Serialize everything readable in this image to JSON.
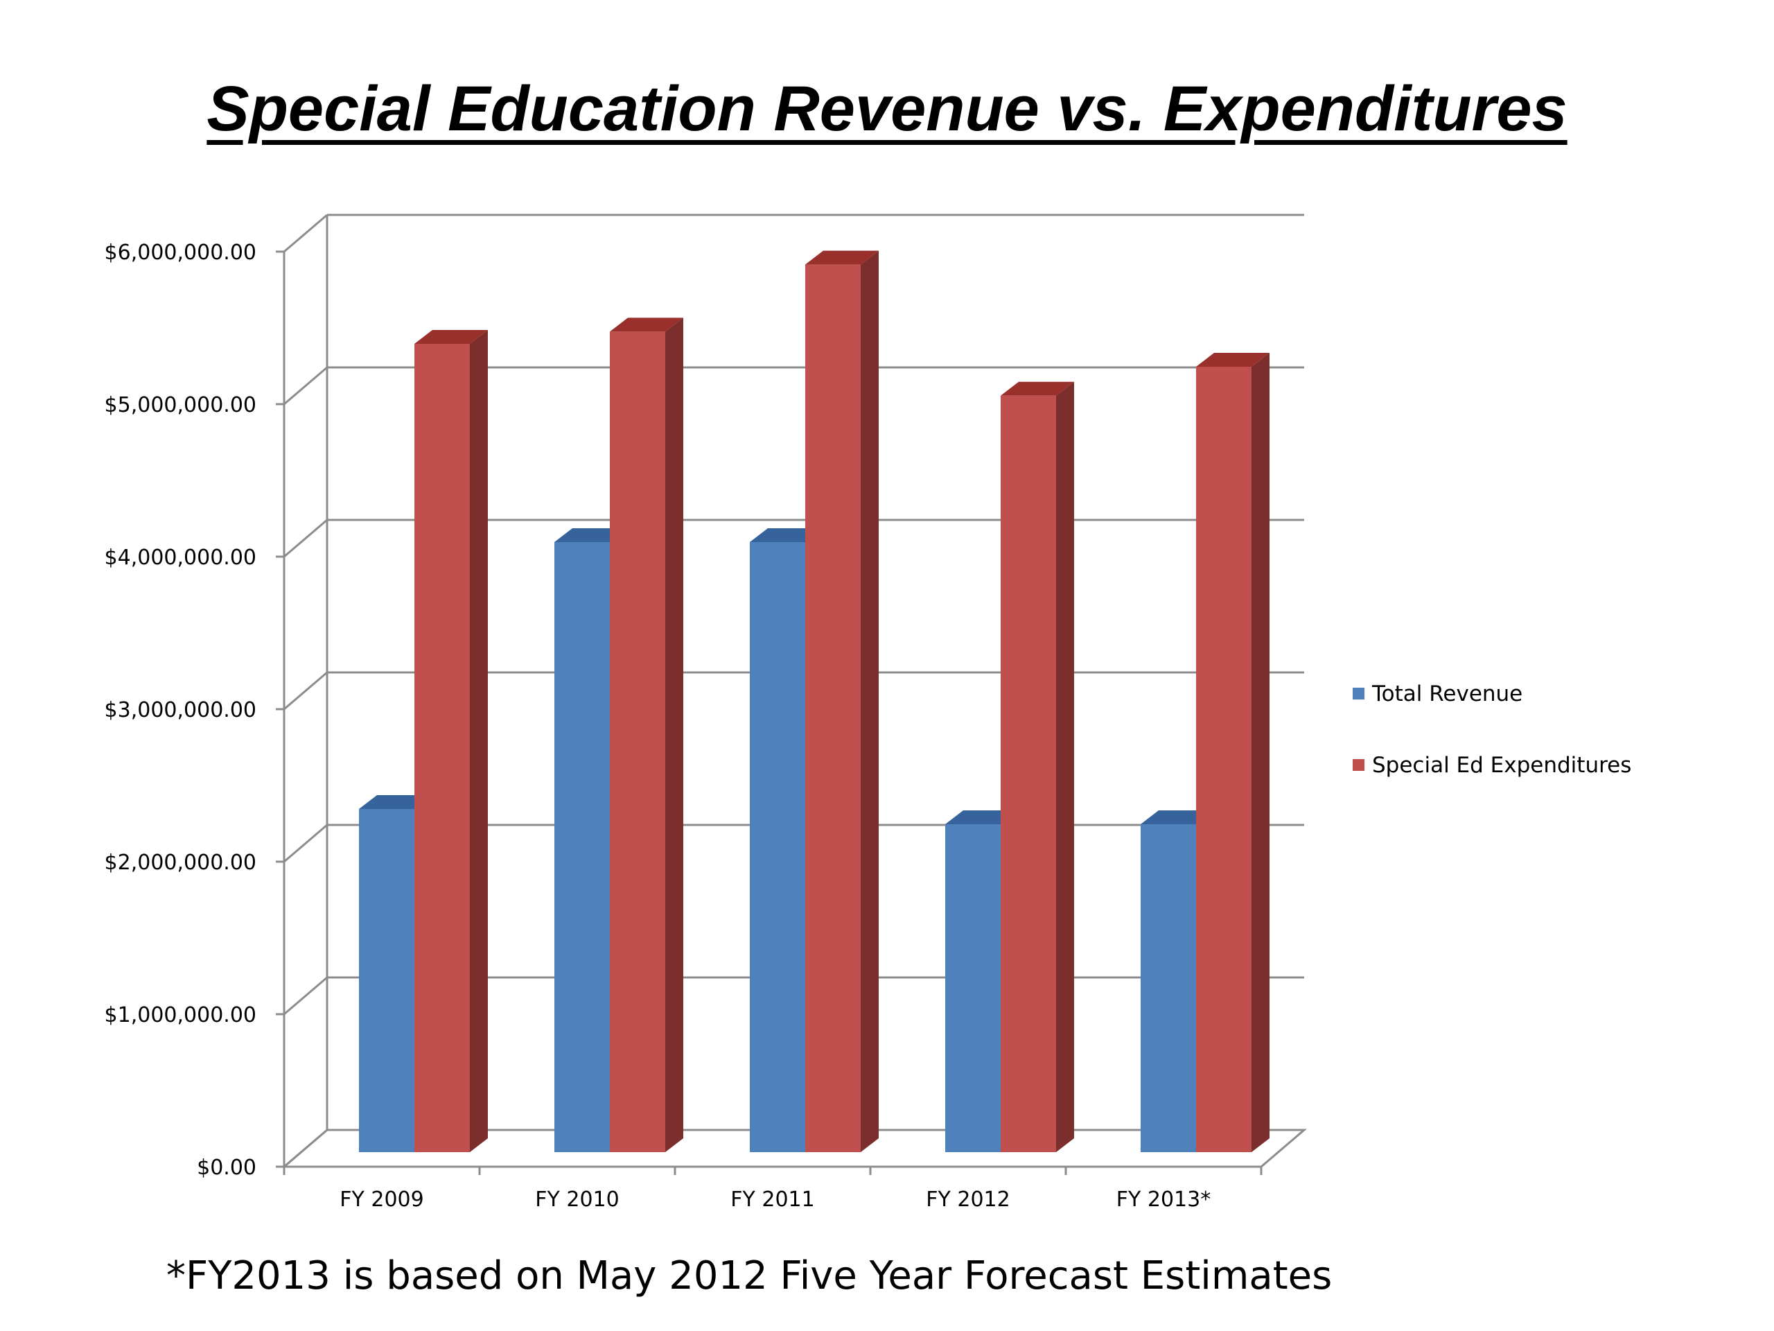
{
  "chart_data": {
    "type": "bar",
    "style": "3d-clustered-column",
    "title": "Special Education Revenue vs. Expenditures",
    "categories": [
      "FY 2009",
      "FY 2010",
      "FY 2011",
      "FY 2012",
      "FY 2013*"
    ],
    "series": [
      {
        "name": "Total Revenue",
        "color": "#4f81bd",
        "side_color": "#2c4d75",
        "top_color": "#36639b",
        "values": [
          2250000,
          4000000,
          4000000,
          2150000,
          2150000
        ]
      },
      {
        "name": "Special Ed Expenditures",
        "color": "#c0504d",
        "side_color": "#7b2e2c",
        "top_color": "#99302c",
        "values": [
          5300000,
          5380000,
          5820000,
          4960000,
          5150000
        ]
      }
    ],
    "ylim": [
      0,
      6000000
    ],
    "yticks": [
      0,
      1000000,
      2000000,
      3000000,
      4000000,
      5000000,
      6000000
    ],
    "ytick_labels": [
      "$0.00",
      "$1,000,000.00",
      "$2,000,000.00",
      "$3,000,000.00",
      "$4,000,000.00",
      "$5,000,000.00",
      "$6,000,000.00"
    ],
    "grid": true,
    "legend_position": "right"
  },
  "footnote": "*FY2013 is based on May 2012 Five Year Forecast Estimates"
}
